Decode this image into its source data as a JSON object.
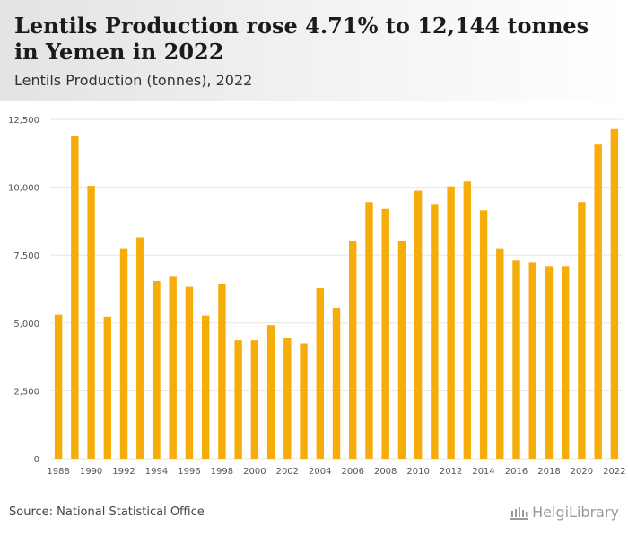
{
  "header": {
    "title": "Lentils Production rose 4.71% to 12,144 tonnes in Yemen in 2022",
    "subtitle": "Lentils Production (tonnes), 2022"
  },
  "footer": {
    "source": "Source: National Statistical Office",
    "logo_text": "HelgiLibrary"
  },
  "colors": {
    "bar": "#f6ac09",
    "grid": "#e6e6e6",
    "axis_text": "#555555"
  },
  "chart_data": {
    "type": "bar",
    "title": "Lentils Production (tonnes), 2022",
    "xlabel": "",
    "ylabel": "",
    "ylim": [
      0,
      12500
    ],
    "y_ticks": [
      0,
      2500,
      5000,
      7500,
      10000,
      12500
    ],
    "y_tick_labels": [
      "0",
      "2,500",
      "5,000",
      "7,500",
      "10,000",
      "12,500"
    ],
    "grid": true,
    "categories": [
      "1988",
      "1989",
      "1990",
      "1991",
      "1992",
      "1993",
      "1994",
      "1995",
      "1996",
      "1997",
      "1998",
      "1999",
      "2000",
      "2001",
      "2002",
      "2003",
      "2004",
      "2005",
      "2006",
      "2007",
      "2008",
      "2009",
      "2010",
      "2011",
      "2012",
      "2013",
      "2014",
      "2015",
      "2016",
      "2017",
      "2018",
      "2019",
      "2020",
      "2021",
      "2022"
    ],
    "x_tick_labels": [
      "1988",
      "1990",
      "1992",
      "1994",
      "1996",
      "1998",
      "2000",
      "2002",
      "2004",
      "2006",
      "2008",
      "2010",
      "2012",
      "2014",
      "2016",
      "2018",
      "2020",
      "2022"
    ],
    "values": [
      5300,
      11900,
      10050,
      5230,
      7750,
      8150,
      6550,
      6700,
      6330,
      5270,
      6450,
      4360,
      4360,
      4920,
      4460,
      4250,
      6280,
      5560,
      8030,
      9450,
      9200,
      8030,
      9870,
      9380,
      10030,
      10210,
      9150,
      7750,
      7300,
      7230,
      7100,
      7100,
      9450,
      11600,
      12144
    ]
  }
}
